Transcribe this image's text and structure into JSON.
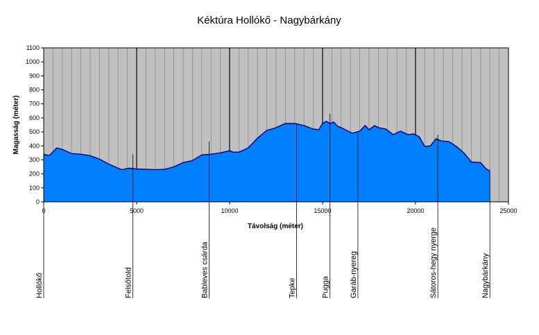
{
  "chart_data": {
    "type": "area",
    "title": "Kéktúra  Hollókő - Nagybárkány",
    "xlabel": "Távolság (méter)",
    "ylabel": "Magasság (méter)",
    "xlim": [
      0,
      25000
    ],
    "ylim": [
      0,
      1100
    ],
    "x_ticks": [
      0,
      5000,
      10000,
      15000,
      20000,
      25000
    ],
    "y_ticks": [
      0,
      100,
      200,
      300,
      400,
      500,
      600,
      700,
      800,
      900,
      1000,
      1100
    ],
    "grid": "vertical",
    "colors": {
      "plot_bg": "#c0c0c0",
      "fill": "#0080ff",
      "stroke": "#000080"
    },
    "series": [
      {
        "x": [
          0,
          300,
          700,
          1000,
          1500,
          2000,
          2500,
          3000,
          3500,
          4000,
          4200,
          4600,
          5000,
          6000,
          6500,
          7000,
          7500,
          8000,
          8500,
          9000,
          9500,
          10000,
          10200,
          10500,
          11000,
          11500,
          12000,
          12500,
          13000,
          13500,
          14000,
          14500,
          14800,
          15000,
          15200,
          15400,
          15600,
          15800,
          16000,
          16300,
          16600,
          17000,
          17300,
          17500,
          17800,
          18000,
          18400,
          18800,
          19200,
          19600,
          19900,
          20200,
          20500,
          20800,
          21100,
          21400,
          21800,
          22200,
          22600,
          23000,
          23500,
          23800,
          24000
        ],
        "y": [
          340,
          330,
          385,
          375,
          345,
          340,
          330,
          305,
          270,
          240,
          230,
          240,
          235,
          230,
          232,
          250,
          280,
          295,
          335,
          340,
          350,
          365,
          355,
          355,
          385,
          455,
          510,
          530,
          560,
          560,
          545,
          520,
          515,
          560,
          575,
          560,
          570,
          540,
          530,
          510,
          490,
          505,
          545,
          515,
          545,
          530,
          520,
          480,
          505,
          480,
          485,
          465,
          395,
          400,
          450,
          435,
          430,
          395,
          350,
          285,
          280,
          235,
          220
        ]
      }
    ],
    "markers": [
      {
        "label": "Hollókő",
        "x": 0,
        "elevation": 340
      },
      {
        "label": "Felsőtold",
        "x": 4800,
        "elevation": 340
      },
      {
        "label": "Bableves csárda",
        "x": 8900,
        "elevation": 430
      },
      {
        "label": "Tepke",
        "x": 13600,
        "elevation": 560
      },
      {
        "label": "Pugga",
        "x": 15400,
        "elevation": 630
      },
      {
        "label": "Garáb-nyereg",
        "x": 16900,
        "elevation": 490
      },
      {
        "label": "Sátoros-hegy nyerge",
        "x": 21200,
        "elevation": 480
      },
      {
        "label": "Nagybárkány",
        "x": 24000,
        "elevation": 220
      }
    ]
  }
}
